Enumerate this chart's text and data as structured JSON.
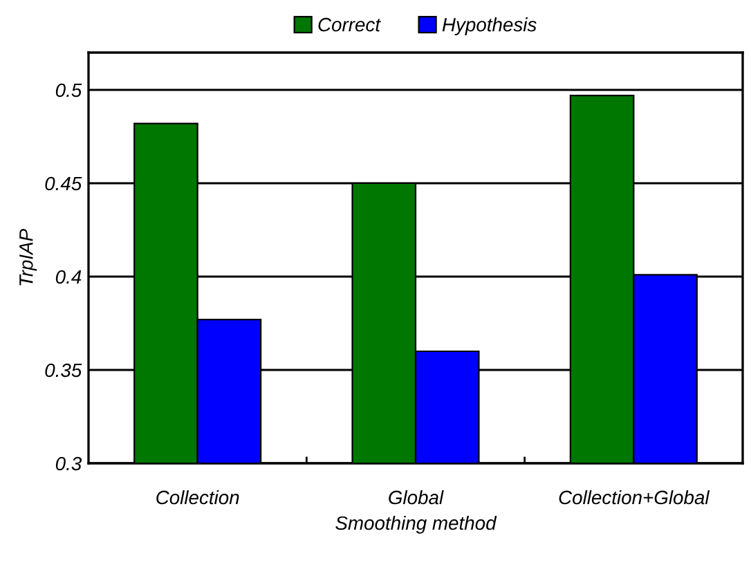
{
  "chart_data": {
    "type": "bar",
    "xlabel": "Smoothing method",
    "ylabel": "TrpIAP",
    "categories": [
      "Collection",
      "Global",
      "Collection+Global"
    ],
    "series": [
      {
        "name": "Correct",
        "color": "#007700",
        "values": [
          0.482,
          0.45,
          0.497
        ]
      },
      {
        "name": "Hypothesis",
        "color": "#0000ff",
        "values": [
          0.377,
          0.36,
          0.401
        ]
      }
    ],
    "ylim": [
      0.3,
      0.52
    ],
    "yticks": [
      0.3,
      0.35,
      0.4,
      0.45,
      0.5
    ],
    "grid": "y",
    "legend": "top"
  }
}
